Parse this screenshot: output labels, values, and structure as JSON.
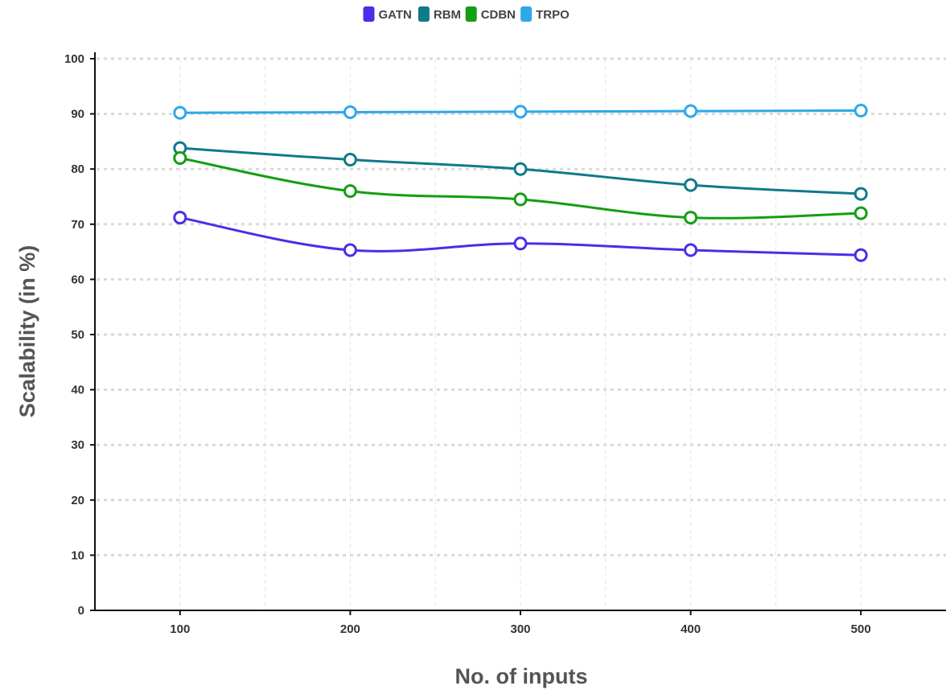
{
  "chart_data": {
    "type": "line",
    "title": "",
    "xlabel": "No. of inputs",
    "ylabel": "Scalability (in %)",
    "x": [
      100,
      200,
      300,
      400,
      500
    ],
    "xlim": [
      50,
      550
    ],
    "ylim": [
      0,
      100
    ],
    "yticks": [
      0,
      10,
      20,
      30,
      40,
      50,
      60,
      70,
      80,
      90,
      100
    ],
    "grid": true,
    "legend_position": "top-center",
    "series": [
      {
        "name": "GATN",
        "color": "#4a2ee8",
        "values": [
          71.2,
          65.3,
          66.5,
          65.3,
          64.4
        ]
      },
      {
        "name": "RBM",
        "color": "#0f7a8a",
        "values": [
          83.8,
          81.7,
          80.0,
          77.1,
          75.5
        ]
      },
      {
        "name": "CDBN",
        "color": "#149e12",
        "values": [
          82.0,
          76.0,
          74.5,
          71.2,
          72.0
        ]
      },
      {
        "name": "TRPO",
        "color": "#2ea8e8",
        "values": [
          90.2,
          90.3,
          90.4,
          90.5,
          90.6
        ]
      }
    ]
  }
}
